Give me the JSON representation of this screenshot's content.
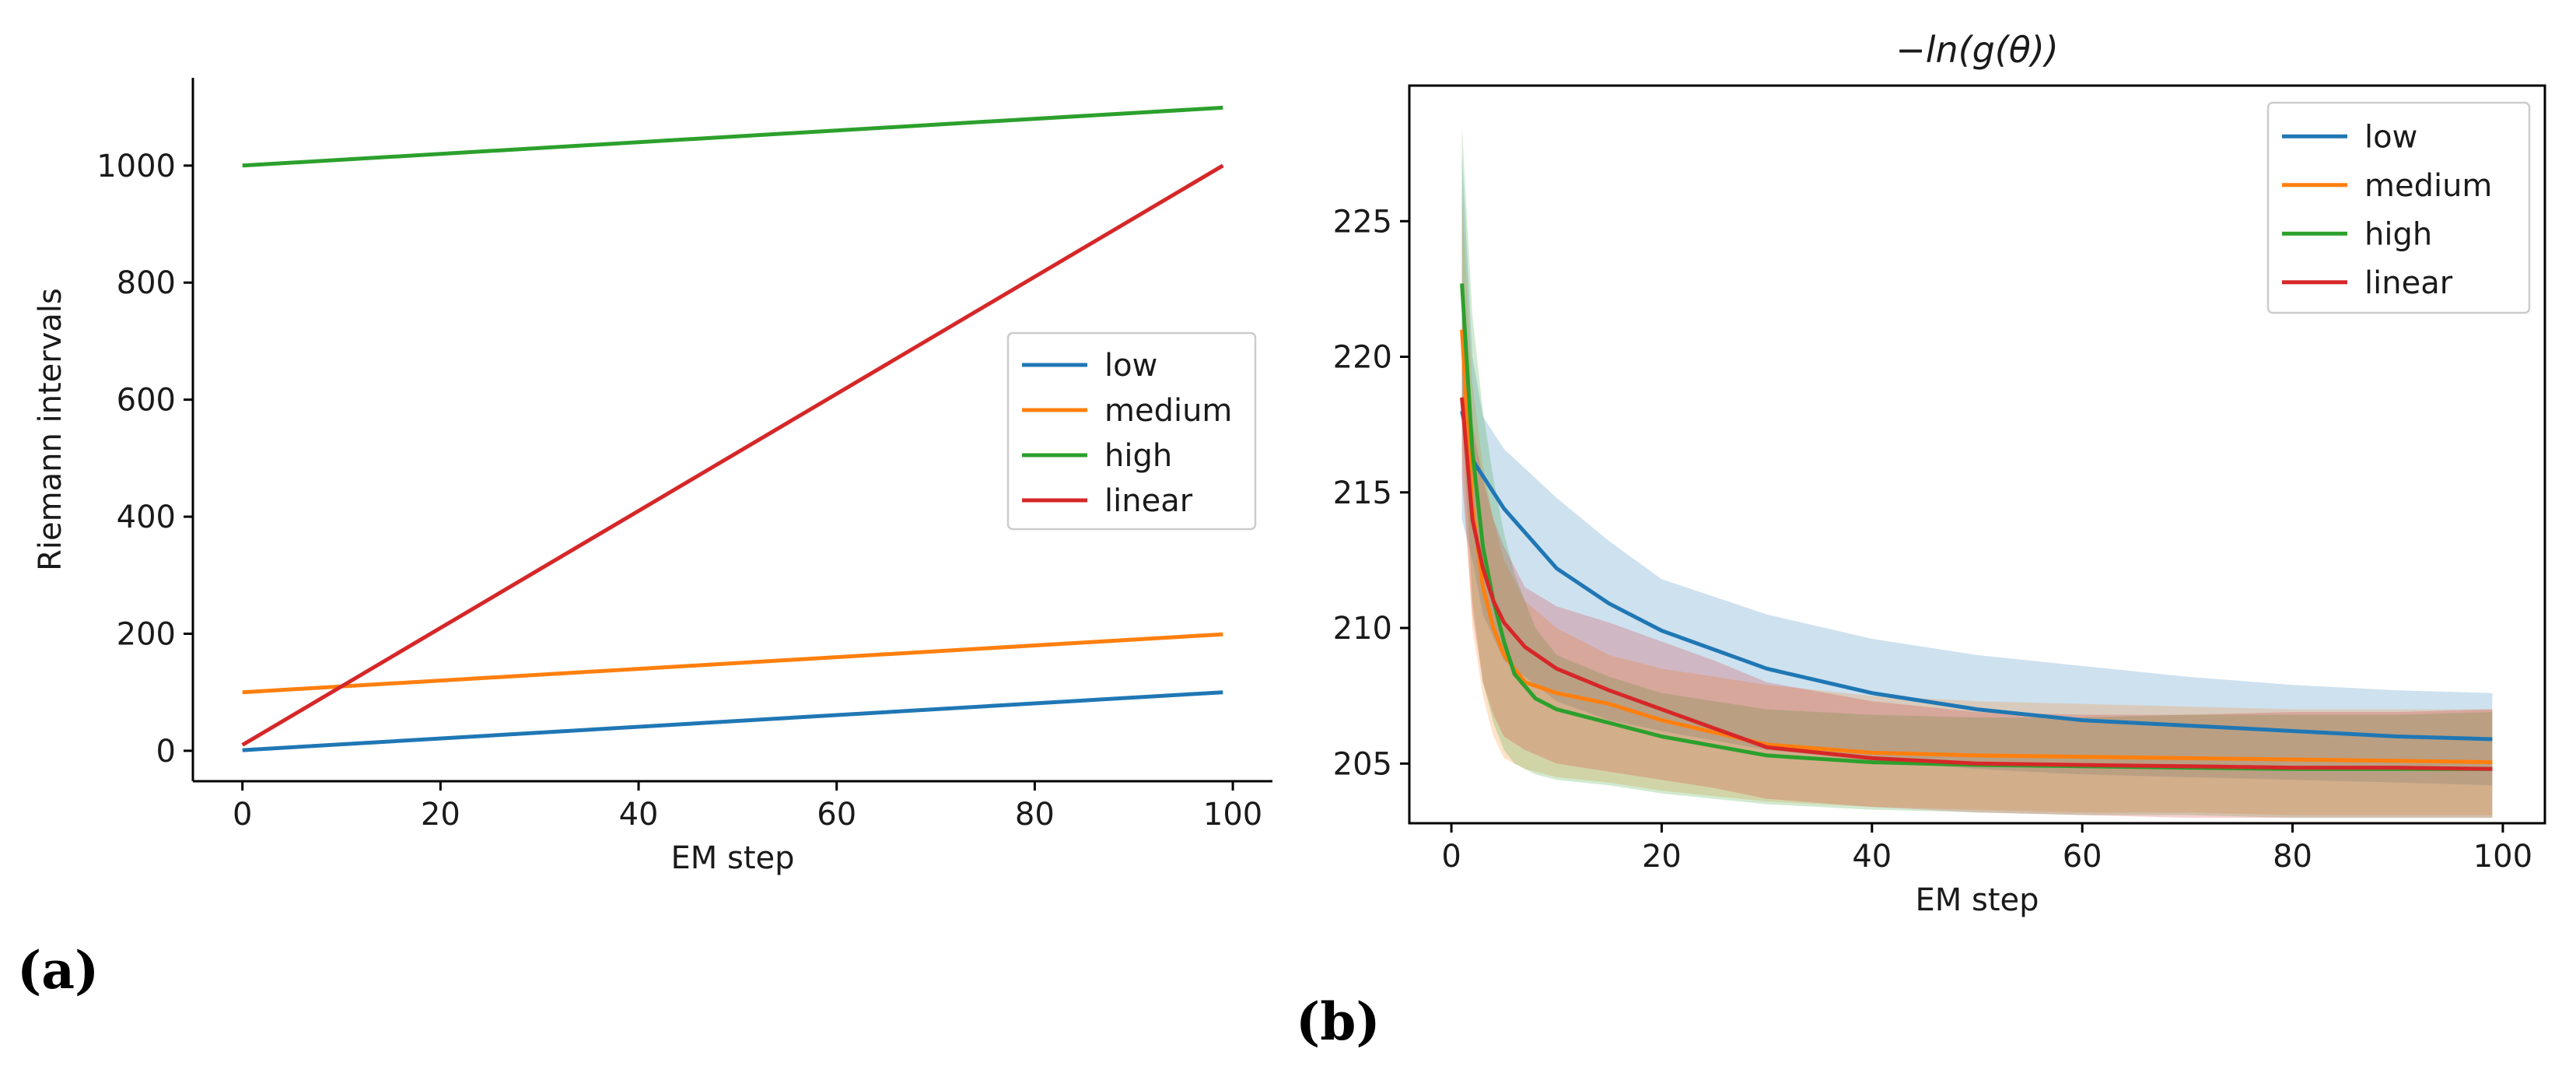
{
  "colors": {
    "low": "#1f77b4",
    "medium": "#ff7f0e",
    "high": "#2ca02c",
    "linear": "#d62728"
  },
  "panel_labels": {
    "a": "(a)",
    "b": "(b)"
  },
  "chart_data": [
    {
      "type": "line",
      "id": "a",
      "title": "",
      "xlabel": "EM step",
      "ylabel": "Riemann intervals",
      "xlim": [
        -5,
        104
      ],
      "ylim": [
        -52,
        1150
      ],
      "xticks": [
        0,
        20,
        40,
        60,
        80,
        100
      ],
      "yticks": [
        0,
        200,
        400,
        600,
        800,
        1000
      ],
      "legend_position": "center-right",
      "series": [
        {
          "name": "low",
          "x": [
            0,
            99
          ],
          "y": [
            1,
            100
          ]
        },
        {
          "name": "medium",
          "x": [
            0,
            99
          ],
          "y": [
            100,
            199
          ]
        },
        {
          "name": "high",
          "x": [
            0,
            99
          ],
          "y": [
            1000,
            1099
          ]
        },
        {
          "name": "linear",
          "x": [
            0,
            99
          ],
          "y": [
            10,
            1000
          ]
        }
      ]
    },
    {
      "type": "line",
      "id": "b",
      "title": "−ln(g(θ))",
      "xlabel": "EM step",
      "ylabel": "",
      "xlim": [
        -4,
        104
      ],
      "ylim": [
        202.8,
        230
      ],
      "xticks": [
        0,
        20,
        40,
        60,
        80,
        100
      ],
      "yticks": [
        205,
        210,
        215,
        220,
        225
      ],
      "legend_position": "top-right",
      "series": [
        {
          "name": "low",
          "x": [
            1,
            2,
            3,
            5,
            10,
            15,
            20,
            30,
            40,
            50,
            60,
            70,
            80,
            90,
            99
          ],
          "y": [
            218.0,
            216.2,
            215.6,
            214.4,
            212.2,
            210.9,
            209.9,
            208.5,
            207.6,
            207.0,
            206.6,
            206.4,
            206.2,
            206.0,
            205.9
          ],
          "upper": [
            227.5,
            220.0,
            217.8,
            216.6,
            214.8,
            213.2,
            211.8,
            210.5,
            209.6,
            209.0,
            208.6,
            208.2,
            207.9,
            207.7,
            207.6
          ],
          "lower": [
            214.0,
            212.5,
            210.5,
            208.8,
            207.3,
            206.6,
            206.2,
            205.5,
            205.1,
            204.8,
            204.6,
            204.5,
            204.4,
            204.3,
            204.2
          ]
        },
        {
          "name": "medium",
          "x": [
            1,
            2,
            3,
            4,
            5,
            7,
            10,
            15,
            20,
            30,
            40,
            50,
            60,
            70,
            80,
            90,
            99
          ],
          "y": [
            221.0,
            214.5,
            211.5,
            210.0,
            209.0,
            208.0,
            207.6,
            207.2,
            206.6,
            205.7,
            205.4,
            205.3,
            205.25,
            205.2,
            205.15,
            205.1,
            205.05
          ],
          "upper": [
            226.0,
            219.0,
            216.0,
            214.0,
            212.5,
            211.0,
            210.0,
            209.0,
            208.5,
            207.9,
            207.5,
            207.3,
            207.2,
            207.1,
            207.0,
            207.0,
            207.0
          ],
          "lower": [
            216.5,
            210.0,
            207.5,
            206.0,
            205.2,
            204.8,
            204.5,
            204.3,
            204.0,
            203.6,
            203.4,
            203.3,
            203.2,
            203.2,
            203.1,
            203.1,
            203.1
          ]
        },
        {
          "name": "high",
          "x": [
            1,
            2,
            3,
            4,
            5,
            6,
            8,
            10,
            15,
            20,
            30,
            40,
            50,
            60,
            70,
            80,
            90,
            99
          ],
          "y": [
            222.7,
            216.5,
            213.0,
            211.0,
            209.5,
            208.3,
            207.4,
            207.0,
            206.5,
            206.0,
            205.3,
            205.05,
            204.95,
            204.9,
            204.85,
            204.8,
            204.8,
            204.8
          ],
          "upper": [
            228.5,
            221.5,
            218.0,
            215.5,
            213.5,
            212.0,
            210.0,
            209.0,
            208.2,
            207.6,
            207.0,
            206.8,
            206.7,
            206.7,
            206.8,
            206.8,
            206.8,
            206.9
          ],
          "lower": [
            218.0,
            211.0,
            208.0,
            206.5,
            205.5,
            205.0,
            204.6,
            204.4,
            204.2,
            203.9,
            203.5,
            203.3,
            203.2,
            203.1,
            203.1,
            203.0,
            203.0,
            203.0
          ]
        },
        {
          "name": "linear",
          "x": [
            1,
            2,
            3,
            4,
            5,
            7,
            10,
            15,
            20,
            25,
            30,
            40,
            50,
            60,
            70,
            80,
            90,
            99
          ],
          "y": [
            218.5,
            214.0,
            212.2,
            211.0,
            210.2,
            209.3,
            208.5,
            207.7,
            207.0,
            206.3,
            205.6,
            205.2,
            205.0,
            204.95,
            204.9,
            204.85,
            204.85,
            204.8
          ],
          "upper": [
            221.5,
            217.5,
            215.5,
            214.0,
            213.0,
            211.5,
            210.8,
            210.2,
            209.5,
            208.8,
            208.0,
            207.3,
            206.9,
            206.8,
            206.8,
            206.9,
            206.9,
            207.0
          ],
          "lower": [
            215.5,
            210.5,
            208.0,
            206.8,
            206.0,
            205.5,
            205.0,
            204.7,
            204.4,
            204.1,
            203.7,
            203.4,
            203.2,
            203.1,
            203.0,
            203.0,
            203.0,
            203.0
          ]
        }
      ]
    }
  ]
}
